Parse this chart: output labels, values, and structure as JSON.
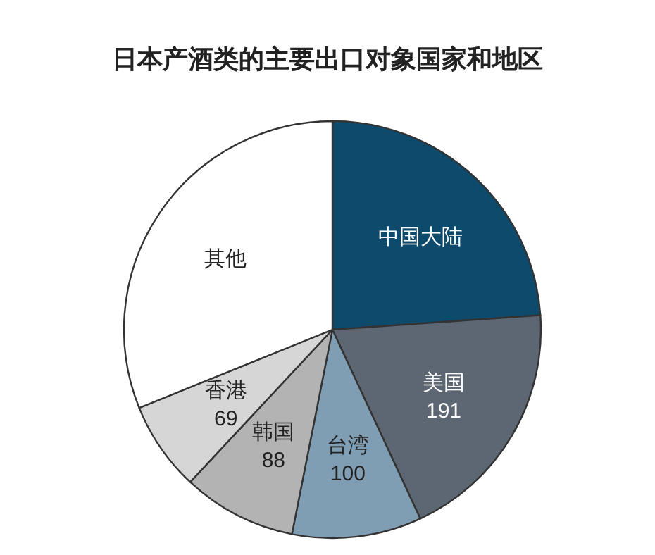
{
  "chart_data": {
    "type": "pie",
    "title": "日本产酒类的主要出口对象国家和地区",
    "categories": [
      "中国大陆",
      "美国",
      "台湾",
      "韩国",
      "香港",
      "其他"
    ],
    "values": [
      238,
      191,
      100,
      88,
      69,
      310
    ],
    "colors": [
      "#0e4a6c",
      "#5d6673",
      "#7f9db3",
      "#b3b3b3",
      "#d6d6d6",
      "#ffffff"
    ],
    "value_labels": [
      null,
      "191",
      "100",
      "88",
      "69",
      null
    ]
  }
}
